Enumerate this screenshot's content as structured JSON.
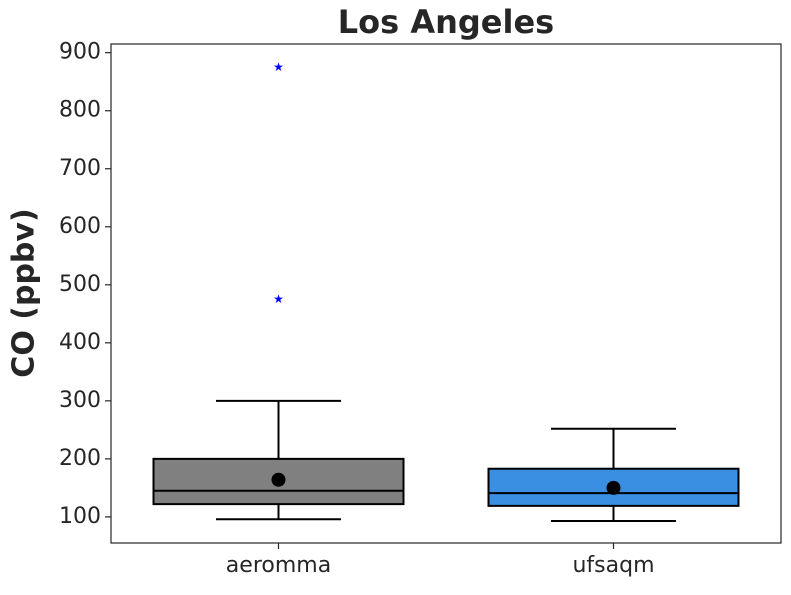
{
  "chart_data": {
    "type": "box",
    "title": "Los Angeles",
    "y_label": "CO (ppbv)",
    "categories": [
      "aeromma",
      "ufsaqm"
    ],
    "colors": [
      "#808080",
      "#3a8fe3"
    ],
    "boxes": [
      {
        "whislo": 96,
        "q1": 122,
        "med": 145,
        "q3": 200,
        "whishi": 300,
        "mean": 164,
        "fliers": [
          876,
          476
        ]
      },
      {
        "whislo": 93,
        "q1": 119,
        "med": 141,
        "q3": 183,
        "whishi": 252,
        "mean": 150,
        "fliers": []
      }
    ],
    "ylim": [
      55,
      915
    ],
    "yticks": [
      100,
      200,
      300,
      400,
      500,
      600,
      700,
      800,
      900
    ]
  }
}
